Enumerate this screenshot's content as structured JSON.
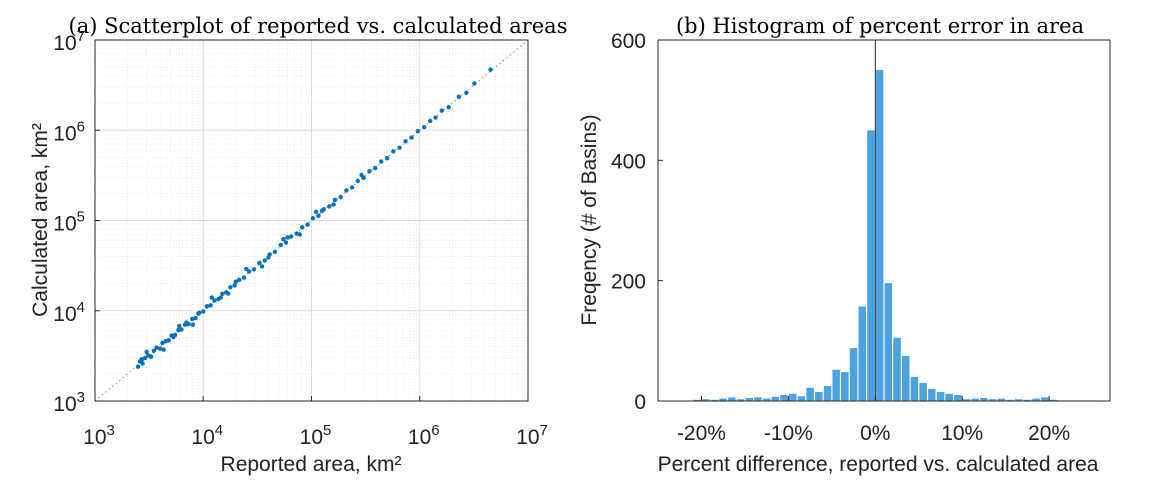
{
  "chart_data": [
    {
      "type": "scatter",
      "title": "(a) Scatterplot of reported vs. calculated areas",
      "xlabel": "Reported area, km²",
      "ylabel": "Calculated area, km²",
      "xscale": "log",
      "yscale": "log",
      "xlim": [
        1000,
        10000000
      ],
      "ylim": [
        1000,
        10000000
      ],
      "xticks": [
        {
          "base": "10",
          "exp": "3",
          "value": 1000
        },
        {
          "base": "10",
          "exp": "4",
          "value": 10000
        },
        {
          "base": "10",
          "exp": "5",
          "value": 100000
        },
        {
          "base": "10",
          "exp": "6",
          "value": 1000000
        },
        {
          "base": "10",
          "exp": "7",
          "value": 10000000
        }
      ],
      "yticks": [
        {
          "base": "10",
          "exp": "3",
          "value": 1000
        },
        {
          "base": "10",
          "exp": "4",
          "value": 10000
        },
        {
          "base": "10",
          "exp": "5",
          "value": 100000
        },
        {
          "base": "10",
          "exp": "6",
          "value": 1000000
        },
        {
          "base": "10",
          "exp": "7",
          "value": 10000000
        }
      ],
      "grid": true,
      "reference_line": "y = x (dotted)",
      "marker_color": "#0072BD",
      "series": [
        {
          "points": [
            [
              2500,
              2400
            ],
            [
              2600,
              2750
            ],
            [
              2750,
              2600
            ],
            [
              2900,
              3000
            ],
            [
              3100,
              3200
            ],
            [
              3300,
              3100
            ],
            [
              3500,
              3600
            ],
            [
              3700,
              3900
            ],
            [
              4000,
              3800
            ],
            [
              4200,
              4400
            ],
            [
              4500,
              4600
            ],
            [
              4800,
              4700
            ],
            [
              5100,
              5300
            ],
            [
              5500,
              5400
            ],
            [
              5900,
              6100
            ],
            [
              6300,
              6200
            ],
            [
              6800,
              7000
            ],
            [
              7300,
              7100
            ],
            [
              7900,
              8100
            ],
            [
              8500,
              8300
            ],
            [
              9200,
              9500
            ],
            [
              10000,
              9800
            ],
            [
              10800,
              11200
            ],
            [
              11700,
              11500
            ],
            [
              12700,
              13000
            ],
            [
              13800,
              13500
            ],
            [
              15000,
              15400
            ],
            [
              16300,
              16000
            ],
            [
              17800,
              18200
            ],
            [
              19500,
              19100
            ],
            [
              21500,
              22000
            ],
            [
              23800,
              23300
            ],
            [
              26500,
              27200
            ],
            [
              29500,
              28800
            ],
            [
              33000,
              33800
            ],
            [
              37000,
              36000
            ],
            [
              41000,
              42000
            ],
            [
              46000,
              45000
            ],
            [
              52000,
              53500
            ],
            [
              58000,
              57000
            ],
            [
              65000,
              66500
            ],
            [
              73000,
              71500
            ],
            [
              82000,
              84000
            ],
            [
              92000,
              90000
            ],
            [
              103000,
              106000
            ],
            [
              116000,
              113000
            ],
            [
              130000,
              133000
            ],
            [
              146000,
              143000
            ],
            [
              165000,
              169000
            ],
            [
              186000,
              182000
            ],
            [
              210000,
              215000
            ],
            [
              237000,
              232000
            ],
            [
              268000,
              274000
            ],
            [
              303000,
              297000
            ],
            [
              343000,
              351000
            ],
            [
              388000,
              381000
            ],
            [
              440000,
              450000
            ],
            [
              500000,
              490000
            ],
            [
              570000,
              583000
            ],
            [
              650000,
              640000
            ],
            [
              740000,
              755000
            ],
            [
              840000,
              830000
            ],
            [
              960000,
              975000
            ],
            [
              1100000,
              1080000
            ],
            [
              1250000,
              1270000
            ],
            [
              1400000,
              1380000
            ],
            [
              1600000,
              1650000
            ],
            [
              1850000,
              1800000
            ],
            [
              2300000,
              2350000
            ],
            [
              2700000,
              2600000
            ],
            [
              3200000,
              3300000
            ],
            [
              4500000,
              4700000
            ],
            [
              3000,
              3500
            ],
            [
              4300,
              3700
            ],
            [
              6000,
              6800
            ],
            [
              8000,
              7000
            ],
            [
              12000,
              14000
            ],
            [
              17000,
              15500
            ],
            [
              25000,
              29000
            ],
            [
              35000,
              31000
            ],
            [
              55000,
              62000
            ],
            [
              78000,
              70000
            ],
            [
              110000,
              125000
            ],
            [
              160000,
              150000
            ],
            [
              290000,
              320000
            ],
            [
              60000,
              65000
            ],
            [
              20000,
              21000
            ],
            [
              9000,
              9300
            ],
            [
              2700,
              2900
            ],
            [
              5300,
              5100
            ],
            [
              7000,
              7400
            ],
            [
              14500,
              14000
            ],
            [
              40000,
              39000
            ],
            [
              125000,
              128000
            ]
          ]
        }
      ]
    },
    {
      "type": "bar",
      "title": "(b) Histogram of percent error in area",
      "xlabel": "Percent difference, reported vs. calculated area",
      "ylabel": "Freqency (# of Basins)",
      "xlim": [
        -25,
        27
      ],
      "ylim": [
        0,
        600
      ],
      "xticks": [
        "-20%",
        "-10%",
        "0%",
        "10%",
        "20%"
      ],
      "xtick_values": [
        -20,
        -10,
        0,
        10,
        20
      ],
      "yticks": [
        "0",
        "200",
        "400",
        "600"
      ],
      "ytick_values": [
        0,
        200,
        400,
        600
      ],
      "bin_width": 1,
      "bar_color": "#4DA3E0",
      "vertical_line_at": 0,
      "bins": [
        {
          "x": -20.5,
          "v": 2
        },
        {
          "x": -19.5,
          "v": 3
        },
        {
          "x": -18.5,
          "v": 2
        },
        {
          "x": -17.5,
          "v": 4
        },
        {
          "x": -16.5,
          "v": 6
        },
        {
          "x": -15.5,
          "v": 3
        },
        {
          "x": -14.5,
          "v": 5
        },
        {
          "x": -13.5,
          "v": 6
        },
        {
          "x": -12.5,
          "v": 4
        },
        {
          "x": -11.5,
          "v": 7
        },
        {
          "x": -10.5,
          "v": 10
        },
        {
          "x": -9.5,
          "v": 12
        },
        {
          "x": -8.5,
          "v": 8
        },
        {
          "x": -7.5,
          "v": 22
        },
        {
          "x": -6.5,
          "v": 15
        },
        {
          "x": -5.5,
          "v": 25
        },
        {
          "x": -4.5,
          "v": 52
        },
        {
          "x": -3.5,
          "v": 48
        },
        {
          "x": -2.5,
          "v": 88
        },
        {
          "x": -1.5,
          "v": 157
        },
        {
          "x": -0.5,
          "v": 450
        },
        {
          "x": 0.5,
          "v": 550
        },
        {
          "x": 1.5,
          "v": 196
        },
        {
          "x": 2.5,
          "v": 105
        },
        {
          "x": 3.5,
          "v": 75
        },
        {
          "x": 4.5,
          "v": 40
        },
        {
          "x": 5.5,
          "v": 30
        },
        {
          "x": 6.5,
          "v": 20
        },
        {
          "x": 7.5,
          "v": 15
        },
        {
          "x": 8.5,
          "v": 12
        },
        {
          "x": 9.5,
          "v": 10
        },
        {
          "x": 10.5,
          "v": 3
        },
        {
          "x": 11.5,
          "v": 4
        },
        {
          "x": 12.5,
          "v": 5
        },
        {
          "x": 13.5,
          "v": 3
        },
        {
          "x": 14.5,
          "v": 4
        },
        {
          "x": 15.5,
          "v": 2
        },
        {
          "x": 16.5,
          "v": 3
        },
        {
          "x": 17.5,
          "v": 2
        },
        {
          "x": 18.5,
          "v": 4
        },
        {
          "x": 19.5,
          "v": 6
        },
        {
          "x": 20.5,
          "v": 2
        },
        {
          "x": 21.5,
          "v": 1
        },
        {
          "x": 22.5,
          "v": 1
        },
        {
          "x": 23.5,
          "v": 1
        },
        {
          "x": 24.5,
          "v": 1
        },
        {
          "x": 25.5,
          "v": 1
        }
      ]
    }
  ]
}
